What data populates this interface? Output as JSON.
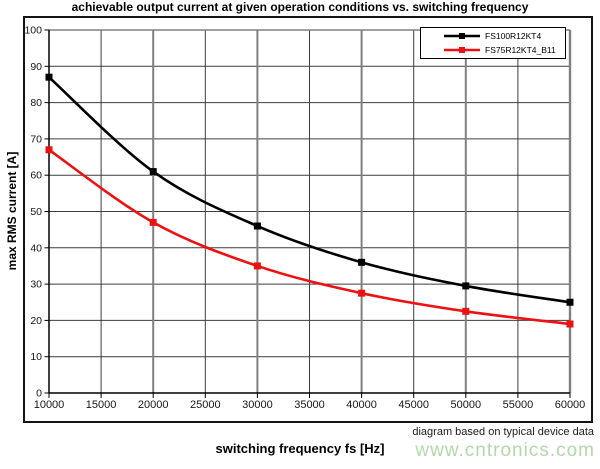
{
  "chart_data": {
    "type": "line",
    "title": "achievable output current at given operation conditions vs. switching frequency",
    "xlabel": "switching frequency fs [Hz]",
    "ylabel": "max RMS current [A]",
    "x": [
      10000,
      20000,
      30000,
      40000,
      50000,
      60000
    ],
    "series": [
      {
        "name": "FS100R12KT4",
        "color": "#000000",
        "values": [
          87,
          61,
          46,
          36,
          29.5,
          25
        ]
      },
      {
        "name": "FS75R12KT4_B11",
        "color": "#ee1111",
        "values": [
          67,
          47,
          35,
          27.5,
          22.5,
          19
        ]
      }
    ],
    "xlim": [
      10000,
      60000
    ],
    "ylim": [
      0,
      100
    ],
    "x_ticks": [
      10000,
      15000,
      20000,
      25000,
      30000,
      35000,
      40000,
      45000,
      50000,
      55000,
      60000
    ],
    "y_ticks": [
      0,
      10,
      20,
      30,
      40,
      50,
      60,
      70,
      80,
      90,
      100
    ],
    "grid": true,
    "legend_position": "top-right",
    "line_style": "smooth",
    "marker": "square"
  },
  "footnote": "diagram based on typical device data",
  "watermark": {
    "text": "www.cntronics.com",
    "color": "#b5d8ab"
  },
  "colors": {
    "grid_minor": "#3d3d3d",
    "grid_major_vertical": "#808080",
    "axis": "#000000",
    "plot_border": "#808080"
  }
}
